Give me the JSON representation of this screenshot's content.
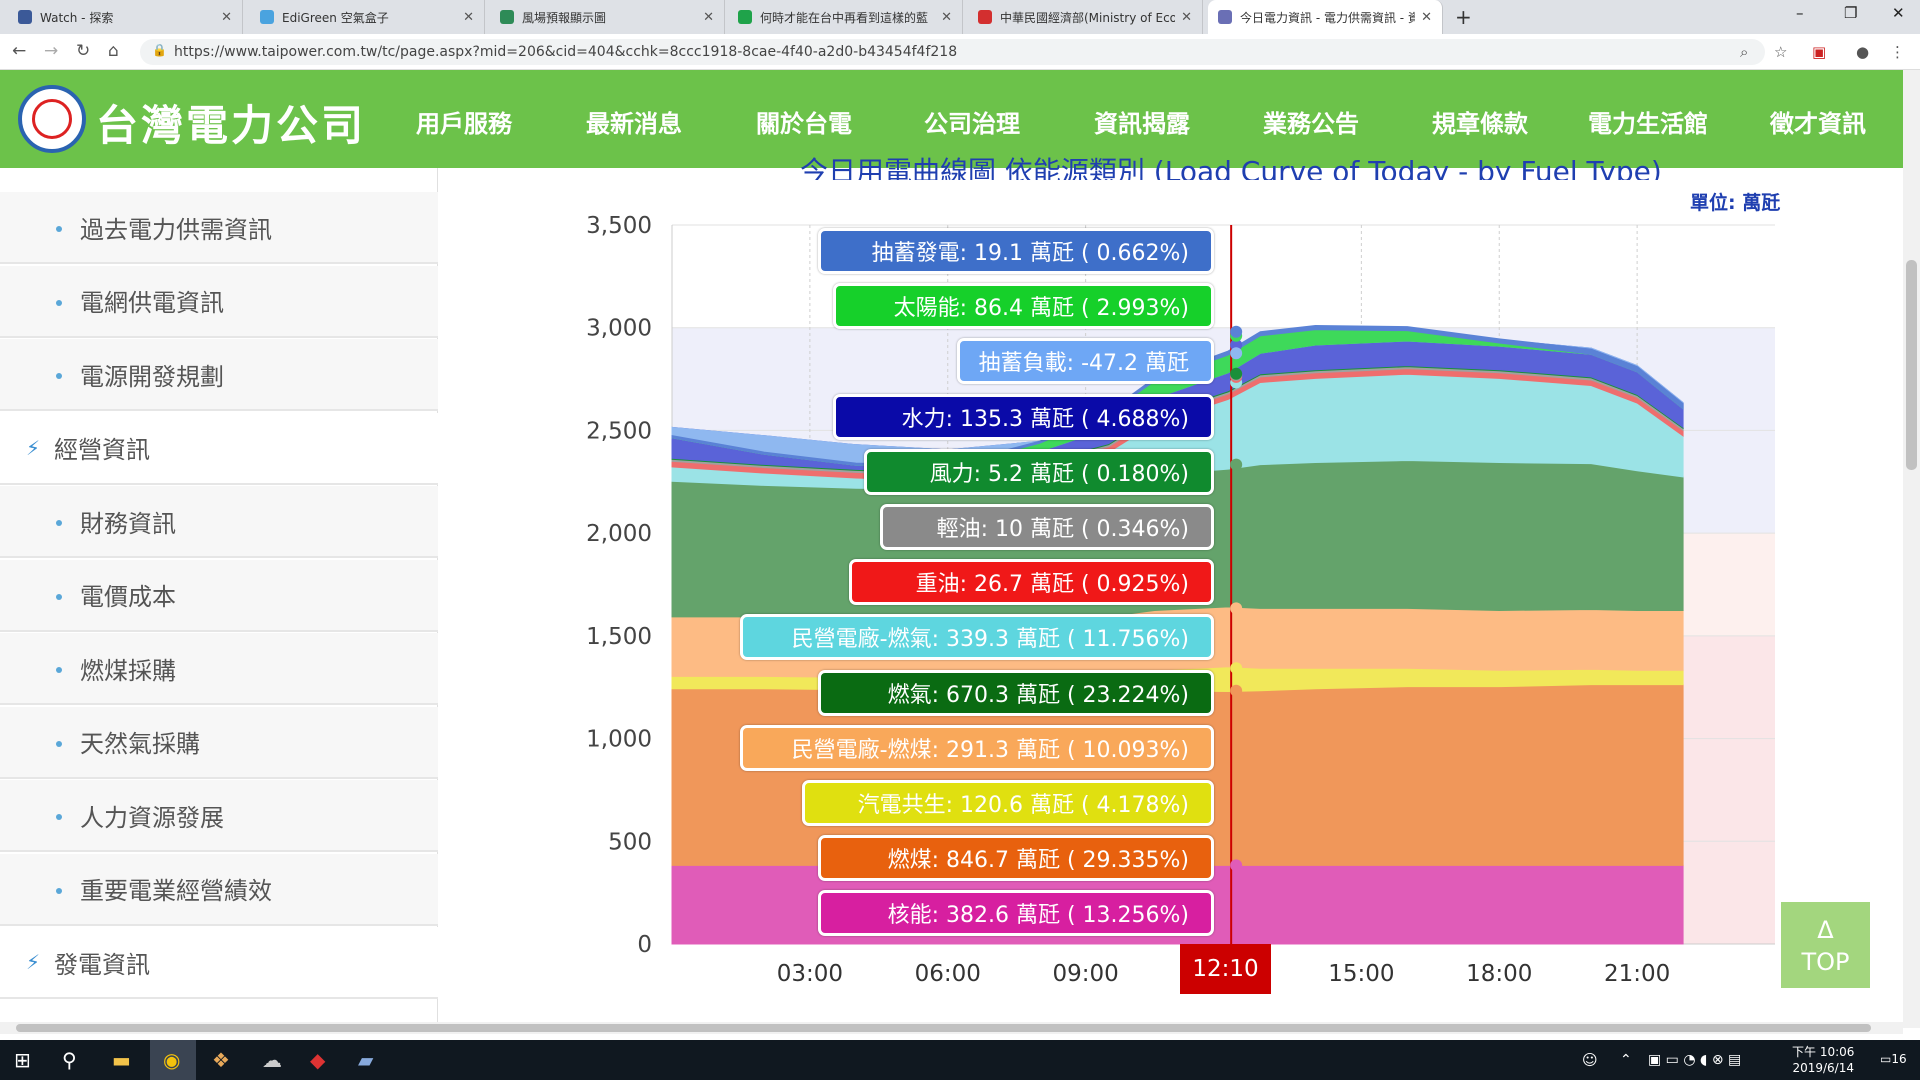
{
  "browser": {
    "tabs": [
      {
        "title": "Watch - 探索",
        "color": "#3b5998"
      },
      {
        "title": "EdiGreen 空氣盒子",
        "color": "#4aa3df"
      },
      {
        "title": "風場預報顯示圖",
        "color": "#2e8b57"
      },
      {
        "title": "何時才能在台中再看到這樣的藍",
        "color": "#1fa34a"
      },
      {
        "title": "中華民國經濟部(Ministry of Eco",
        "color": "#d32f2f"
      },
      {
        "title": "今日電力資訊 - 電力供需資訊 - 資",
        "color": "#6a6fb5"
      }
    ],
    "new_tab": "+",
    "url": "https://www.taipower.com.tw/tc/page.aspx?mid=206&cid=404&cchk=8ccc1918-8cae-4f40-a2d0-b43454f4f218",
    "controls": {
      "minimize": "–",
      "maximize": "❐",
      "close": "✕"
    },
    "nav": {
      "back": "←",
      "forward": "→",
      "reload": "↻",
      "home": "⌂"
    }
  },
  "site": {
    "logo_text": "台灣電力公司",
    "nav": [
      "用戶服務",
      "最新消息",
      "關於台電",
      "公司治理",
      "資訊揭露",
      "業務公告",
      "規章條款",
      "電力生活館",
      "徵才資訊"
    ]
  },
  "sidebar": {
    "items": [
      {
        "label": "過去電力供需資訊",
        "type": "sub"
      },
      {
        "label": "電網供電資訊",
        "type": "sub"
      },
      {
        "label": "電源開發規劃",
        "type": "sub"
      },
      {
        "label": "經營資訊",
        "type": "section"
      },
      {
        "label": "財務資訊",
        "type": "sub"
      },
      {
        "label": "電價成本",
        "type": "sub"
      },
      {
        "label": "燃煤採購",
        "type": "sub"
      },
      {
        "label": "天然氣採購",
        "type": "sub"
      },
      {
        "label": "人力資源發展",
        "type": "sub"
      },
      {
        "label": "重要電業經營績效",
        "type": "sub"
      },
      {
        "label": "發電資訊",
        "type": "section"
      }
    ]
  },
  "chart_data": {
    "type": "area",
    "title": "今日用電曲線圖 依能源類別 (Load Curve of Today - by Fuel Type)",
    "unit_label": "單位: 萬瓩",
    "ylim": [
      0,
      3500
    ],
    "yticks": [
      0,
      500,
      1000,
      1500,
      2000,
      2500,
      3000,
      3500
    ],
    "xlim": [
      0,
      24
    ],
    "xticks": [
      {
        "value": 3,
        "label": "03:00"
      },
      {
        "value": 6,
        "label": "06:00"
      },
      {
        "value": 9,
        "label": "09:00"
      },
      {
        "value": 15,
        "label": "15:00"
      },
      {
        "value": 18,
        "label": "18:00"
      },
      {
        "value": 21,
        "label": "21:00"
      }
    ],
    "cursor": {
      "value": 12.1667,
      "label": "12:10"
    },
    "x": [
      0,
      2,
      4,
      6,
      8,
      9.5,
      10.5,
      12.1,
      12.8,
      14,
      16,
      18,
      20,
      21,
      22
    ],
    "series": [
      {
        "name": "核能",
        "color": "#e05cb8",
        "values": [
          382.6,
          382.6,
          382.6,
          382.6,
          382.6,
          382.6,
          382.6,
          382.6,
          382.6,
          382.6,
          382.6,
          382.6,
          382.6,
          382.6,
          382.6
        ]
      },
      {
        "name": "燃煤",
        "color": "#f0975a",
        "values": [
          860,
          860,
          855,
          850,
          850,
          850,
          850,
          846.7,
          850,
          860,
          870,
          870,
          880,
          880,
          880
        ]
      },
      {
        "name": "汽電共生",
        "color": "#f1e85a",
        "values": [
          60,
          60,
          60,
          60,
          62,
          70,
          100,
          120.6,
          110,
          100,
          90,
          80,
          75,
          70,
          70
        ]
      },
      {
        "name": "民營電廠-燃煤",
        "color": "#fdbb84",
        "values": [
          290,
          290,
          291,
          291,
          291,
          291,
          291,
          291.3,
          291,
          291,
          291,
          291,
          291,
          291,
          291
        ]
      },
      {
        "name": "燃氣",
        "color": "#64a36b",
        "values": [
          660,
          640,
          630,
          630,
          640,
          650,
          660,
          670.3,
          700,
          710,
          720,
          720,
          710,
          680,
          650
        ]
      },
      {
        "name": "民營電廠-燃氣",
        "color": "#9be3e6",
        "values": [
          70,
          60,
          50,
          40,
          80,
          150,
          250,
          339.3,
          400,
          410,
          420,
          410,
          380,
          330,
          200
        ]
      },
      {
        "name": "重油",
        "color": "#ee6e6e",
        "values": [
          27,
          27,
          27,
          27,
          27,
          27,
          27,
          26.7,
          27,
          27,
          27,
          27,
          27,
          27,
          27
        ]
      },
      {
        "name": "輕油",
        "color": "#a0a0a0",
        "values": [
          10,
          10,
          10,
          10,
          10,
          10,
          10,
          10,
          10,
          10,
          10,
          10,
          10,
          10,
          10
        ]
      },
      {
        "name": "風力",
        "color": "#1a8f3a",
        "values": [
          5,
          5,
          5,
          5,
          5,
          5,
          5,
          5.2,
          5,
          5,
          5,
          5,
          5,
          5,
          5
        ]
      },
      {
        "name": "水力",
        "color": "#5a63d8",
        "values": [
          150,
          140,
          120,
          110,
          100,
          115,
          125,
          135.3,
          140,
          150,
          150,
          145,
          140,
          140,
          120
        ]
      },
      {
        "name": "抽蓄負載",
        "color": "#8fb8f0",
        "values": [
          -50,
          -90,
          -100,
          -90,
          -50,
          -40,
          -45,
          -47.2,
          -40,
          -30,
          -30,
          -30,
          -30,
          -30,
          -30
        ]
      },
      {
        "name": "太陽能",
        "color": "#3ed95a",
        "values": [
          0,
          0,
          0,
          5,
          40,
          70,
          85,
          86.4,
          85,
          75,
          50,
          15,
          0,
          0,
          0
        ]
      },
      {
        "name": "抽蓄發電",
        "color": "#5a82d6",
        "values": [
          10,
          10,
          10,
          10,
          10,
          12,
          15,
          19.1,
          20,
          20,
          20,
          20,
          25,
          25,
          25
        ]
      }
    ],
    "tooltip": [
      {
        "text": "抽蓄發電: 19.1 萬瓩 ( 0.662%)",
        "color": "#3e6fc9"
      },
      {
        "text": "太陽能: 86.4 萬瓩 ( 2.993%)",
        "color": "#16d02a"
      },
      {
        "text": "抽蓄負載: -47.2 萬瓩",
        "color": "#6ea7f5"
      },
      {
        "text": "水力: 135.3 萬瓩 ( 4.688%)",
        "color": "#0a0aa8"
      },
      {
        "text": "風力: 5.2 萬瓩 ( 0.180%)",
        "color": "#108a2e"
      },
      {
        "text": "輕油: 10 萬瓩 ( 0.346%)",
        "color": "#8a8a8a"
      },
      {
        "text": "重油: 26.7 萬瓩 ( 0.925%)",
        "color": "#f01818"
      },
      {
        "text": "民營電廠-燃氣: 339.3 萬瓩 ( 11.756%)",
        "color": "#5ed6df"
      },
      {
        "text": "燃氣: 670.3 萬瓩 ( 23.224%)",
        "color": "#0a6b12"
      },
      {
        "text": "民營電廠-燃煤: 291.3 萬瓩 ( 10.093%)",
        "color": "#f9a85a"
      },
      {
        "text": "汽電共生: 120.6 萬瓩 ( 4.178%)",
        "color": "#e0e010"
      },
      {
        "text": "燃煤: 846.7 萬瓩 ( 29.335%)",
        "color": "#e8610e"
      },
      {
        "text": "核能: 382.6 萬瓩 ( 13.256%)",
        "color": "#d71fa0"
      }
    ]
  },
  "top_button": {
    "arrow": "Δ",
    "label": "TOP"
  },
  "taskbar": {
    "clock_time": "下午 10:06",
    "clock_date": "2019/6/14",
    "notifications": "16"
  }
}
